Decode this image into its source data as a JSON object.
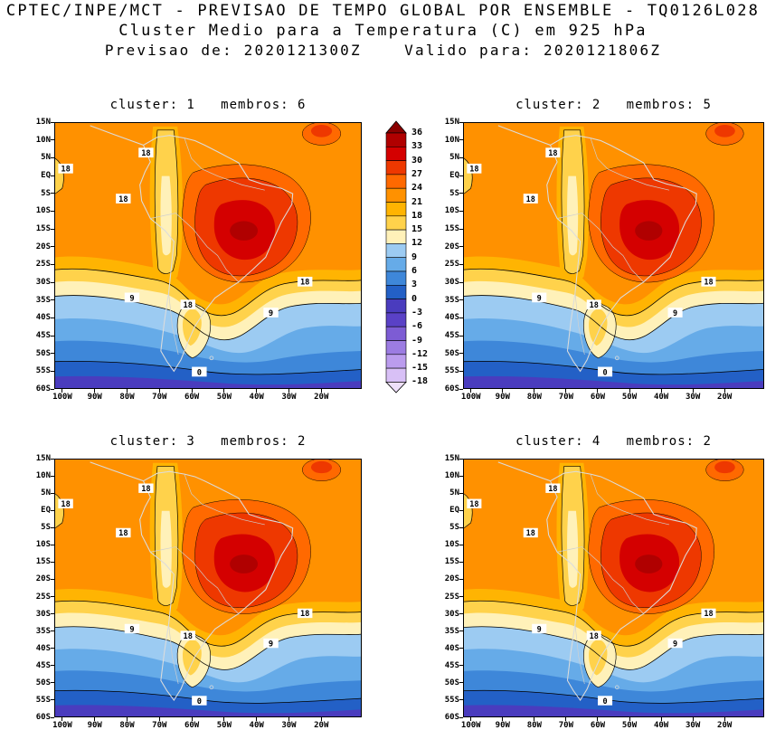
{
  "header": {
    "line1": "CPTEC/INPE/MCT - PREVISAO DE TEMPO GLOBAL POR ENSEMBLE - TQ0126L028",
    "line2": "Cluster Medio para a Temperatura (C) em 925 hPa",
    "line3": "Previsao de: 2020121300Z    Valido para: 2020121806Z"
  },
  "chart_data": {
    "type": "heatmap",
    "title": "Cluster Medio para a Temperatura (C) em 925 hPa",
    "variable": "Temperatura",
    "units": "C",
    "level": "925 hPa",
    "model": "TQ0126L028",
    "forecast_from": "2020121300Z",
    "valid_for": "2020121806Z",
    "legend_position": "center between panel columns, top row",
    "grid": "off",
    "panels": [
      {
        "title": "cluster: 1   membros: 6",
        "cluster": "1",
        "membros": "6"
      },
      {
        "title": "cluster: 2   membros: 5",
        "cluster": "2",
        "membros": "5"
      },
      {
        "title": "cluster: 3   membros: 2",
        "cluster": "3",
        "membros": "2"
      },
      {
        "title": "cluster: 4   membros: 2",
        "cluster": "4",
        "membros": "2"
      }
    ],
    "lat_ticks": [
      "15N",
      "10N",
      "5N",
      "EQ",
      "5S",
      "10S",
      "15S",
      "20S",
      "25S",
      "30S",
      "35S",
      "40S",
      "45S",
      "50S",
      "55S",
      "60S"
    ],
    "lon_ticks": [
      "100W",
      "90W",
      "80W",
      "70W",
      "60W",
      "50W",
      "40W",
      "30W",
      "20W"
    ],
    "lat_range": [
      "15N",
      "60S"
    ],
    "lon_range": [
      "100W",
      "20W"
    ],
    "colorbar": {
      "levels": [
        "36",
        "33",
        "30",
        "27",
        "24",
        "21",
        "18",
        "15",
        "12",
        "9",
        "6",
        "3",
        "0",
        "-3",
        "-6",
        "-9",
        "-12",
        "-15",
        "-18"
      ],
      "colors": [
        "#8a0000",
        "#b00000",
        "#d40000",
        "#ee3800",
        "#ff6900",
        "#ff9100",
        "#ffb402",
        "#ffd24b",
        "#fff1b9",
        "#9ccbf2",
        "#66abe8",
        "#3e87d9",
        "#2360c6",
        "#4a3cbe",
        "#5a41c6",
        "#7d5cd4",
        "#9c7ce2",
        "#bb9cee",
        "#d8c0f6",
        "#eedff9"
      ]
    },
    "contour_labels": [
      "18",
      "9",
      "0"
    ],
    "field_description": "Warm core (27-36 C) over central Brazil, orange 21-24 C background over tropics, yellow band along Andes and subtropics, blues 0-12 C south of 30S, purple band below 0 C near 60S"
  }
}
